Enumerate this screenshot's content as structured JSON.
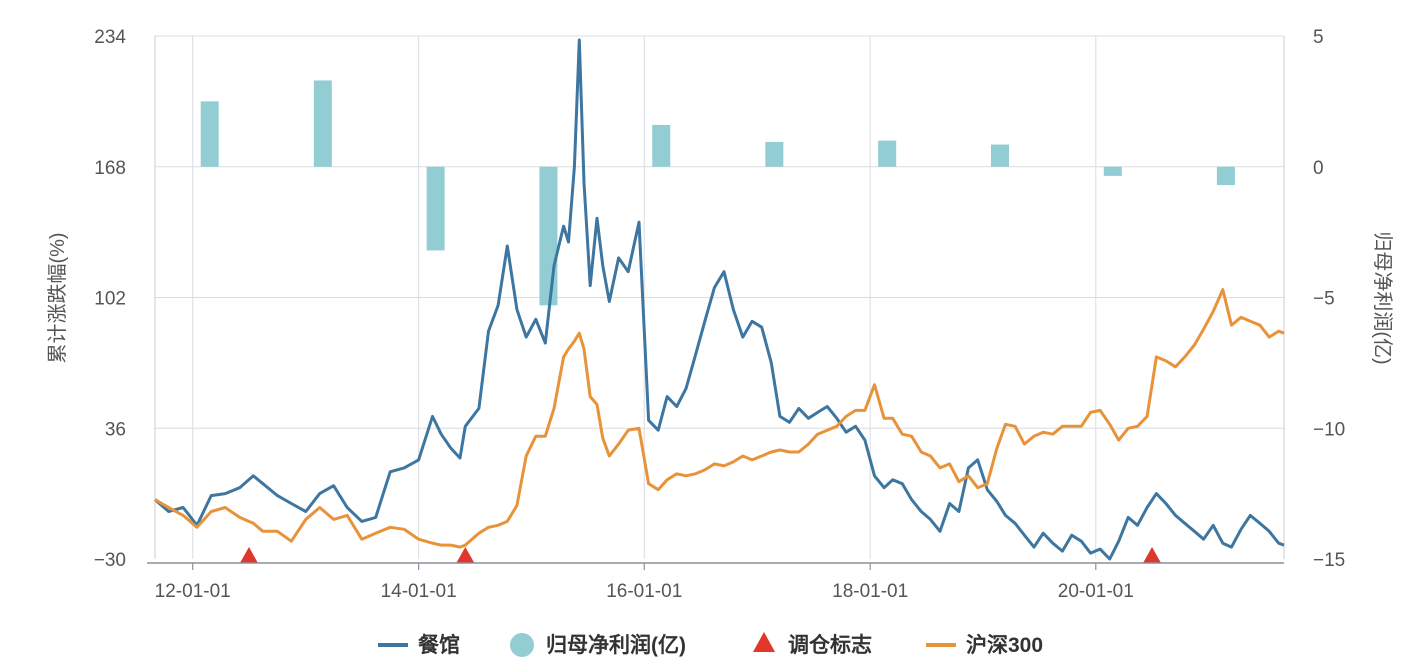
{
  "chart_data": {
    "type": "line",
    "left_axis": {
      "title": "累计涨跌幅(%)",
      "ticks": [
        "234",
        "168",
        "102",
        "36",
        "−30"
      ],
      "tick_values": [
        234,
        168,
        102,
        36,
        -30
      ],
      "range": [
        -30,
        234
      ]
    },
    "right_axis": {
      "title": "归母净利润(亿)",
      "ticks": [
        "5",
        "0",
        "−5",
        "−10",
        "−15"
      ],
      "tick_values": [
        5,
        0,
        -5,
        -10,
        -15
      ],
      "range": [
        -15,
        5
      ]
    },
    "x_axis": {
      "range": [
        "2011-09-01",
        "2021-09-01"
      ],
      "ticks": [
        {
          "label": "12-01-01",
          "date": "2012-01-01"
        },
        {
          "label": "14-01-01",
          "date": "2014-01-01"
        },
        {
          "label": "16-01-01",
          "date": "2016-01-01"
        },
        {
          "label": "18-01-01",
          "date": "2018-01-01"
        },
        {
          "label": "20-01-01",
          "date": "2020-01-01"
        }
      ]
    },
    "grid": true,
    "legend_position": "bottom",
    "legend": [
      {
        "label": "餐馆",
        "marker": "line",
        "color": "#3d76a0"
      },
      {
        "label": "归母净利润(亿)",
        "marker": "circle",
        "color": "#92cdd4"
      },
      {
        "label": "调仓标志",
        "marker": "triangle",
        "color": "#e0362c"
      },
      {
        "label": "沪深300",
        "marker": "line",
        "color": "#e8923a"
      }
    ],
    "series": [
      {
        "name": "餐馆",
        "color": "#3d76a0",
        "axis": "left",
        "points": [
          [
            "2011-09-01",
            0
          ],
          [
            "2011-10-15",
            -6
          ],
          [
            "2011-12-01",
            -4
          ],
          [
            "2012-01-15",
            -13
          ],
          [
            "2012-03-01",
            2
          ],
          [
            "2012-04-15",
            3
          ],
          [
            "2012-06-01",
            6
          ],
          [
            "2012-07-15",
            12
          ],
          [
            "2012-08-15",
            8
          ],
          [
            "2012-10-01",
            2
          ],
          [
            "2012-11-15",
            -2
          ],
          [
            "2013-01-01",
            -6
          ],
          [
            "2013-02-15",
            3
          ],
          [
            "2013-04-01",
            7
          ],
          [
            "2013-05-15",
            -4
          ],
          [
            "2013-07-01",
            -11
          ],
          [
            "2013-08-15",
            -9
          ],
          [
            "2013-10-01",
            14
          ],
          [
            "2013-11-15",
            16
          ],
          [
            "2014-01-01",
            20
          ],
          [
            "2014-02-15",
            42
          ],
          [
            "2014-03-15",
            33
          ],
          [
            "2014-04-15",
            26
          ],
          [
            "2014-05-15",
            21
          ],
          [
            "2014-06-01",
            37
          ],
          [
            "2014-07-15",
            46
          ],
          [
            "2014-08-15",
            85
          ],
          [
            "2014-09-15",
            98
          ],
          [
            "2014-10-15",
            128
          ],
          [
            "2014-11-15",
            96
          ],
          [
            "2014-12-15",
            82
          ],
          [
            "2015-01-15",
            91
          ],
          [
            "2015-02-15",
            79
          ],
          [
            "2015-03-15",
            118
          ],
          [
            "2015-04-15",
            138
          ],
          [
            "2015-05-01",
            130
          ],
          [
            "2015-05-20",
            168
          ],
          [
            "2015-06-05",
            232
          ],
          [
            "2015-06-20",
            160
          ],
          [
            "2015-07-10",
            108
          ],
          [
            "2015-08-01",
            142
          ],
          [
            "2015-08-20",
            118
          ],
          [
            "2015-09-10",
            100
          ],
          [
            "2015-10-10",
            122
          ],
          [
            "2015-11-10",
            115
          ],
          [
            "2015-12-15",
            140
          ],
          [
            "2016-01-15",
            40
          ],
          [
            "2016-02-15",
            35
          ],
          [
            "2016-03-15",
            52
          ],
          [
            "2016-04-15",
            47
          ],
          [
            "2016-05-15",
            56
          ],
          [
            "2016-06-15",
            73
          ],
          [
            "2016-07-15",
            90
          ],
          [
            "2016-08-15",
            107
          ],
          [
            "2016-09-15",
            115
          ],
          [
            "2016-10-15",
            96
          ],
          [
            "2016-11-15",
            82
          ],
          [
            "2016-12-15",
            90
          ],
          [
            "2017-01-15",
            87
          ],
          [
            "2017-02-15",
            69
          ],
          [
            "2017-03-15",
            42
          ],
          [
            "2017-04-15",
            39
          ],
          [
            "2017-05-15",
            46
          ],
          [
            "2017-06-15",
            41
          ],
          [
            "2017-07-15",
            44
          ],
          [
            "2017-08-15",
            47
          ],
          [
            "2017-09-15",
            41
          ],
          [
            "2017-10-15",
            34
          ],
          [
            "2017-11-15",
            37
          ],
          [
            "2017-12-15",
            30
          ],
          [
            "2018-01-15",
            12
          ],
          [
            "2018-02-15",
            6
          ],
          [
            "2018-03-15",
            10
          ],
          [
            "2018-04-15",
            8
          ],
          [
            "2018-05-15",
            0
          ],
          [
            "2018-06-15",
            -6
          ],
          [
            "2018-07-15",
            -10
          ],
          [
            "2018-08-15",
            -16
          ],
          [
            "2018-09-15",
            -2
          ],
          [
            "2018-10-15",
            -6
          ],
          [
            "2018-11-15",
            16
          ],
          [
            "2018-12-15",
            20
          ],
          [
            "2019-01-15",
            5
          ],
          [
            "2019-02-15",
            -1
          ],
          [
            "2019-03-15",
            -8
          ],
          [
            "2019-04-15",
            -12
          ],
          [
            "2019-05-15",
            -18
          ],
          [
            "2019-06-15",
            -24
          ],
          [
            "2019-07-15",
            -17
          ],
          [
            "2019-08-15",
            -22
          ],
          [
            "2019-09-15",
            -26
          ],
          [
            "2019-10-15",
            -18
          ],
          [
            "2019-11-15",
            -21
          ],
          [
            "2019-12-15",
            -27
          ],
          [
            "2020-01-15",
            -25
          ],
          [
            "2020-02-15",
            -30
          ],
          [
            "2020-03-15",
            -21
          ],
          [
            "2020-04-15",
            -9
          ],
          [
            "2020-05-15",
            -13
          ],
          [
            "2020-06-15",
            -4
          ],
          [
            "2020-07-15",
            3
          ],
          [
            "2020-08-15",
            -2
          ],
          [
            "2020-09-15",
            -8
          ],
          [
            "2020-10-15",
            -12
          ],
          [
            "2020-11-15",
            -16
          ],
          [
            "2020-12-15",
            -20
          ],
          [
            "2021-01-15",
            -13
          ],
          [
            "2021-02-15",
            -22
          ],
          [
            "2021-03-15",
            -24
          ],
          [
            "2021-04-15",
            -15
          ],
          [
            "2021-05-15",
            -8
          ],
          [
            "2021-06-15",
            -12
          ],
          [
            "2021-07-15",
            -16
          ],
          [
            "2021-08-15",
            -22
          ],
          [
            "2021-09-01",
            -23
          ]
        ]
      },
      {
        "name": "沪深300",
        "color": "#e8923a",
        "axis": "left",
        "points": [
          [
            "2011-09-01",
            0
          ],
          [
            "2011-10-15",
            -4
          ],
          [
            "2011-12-01",
            -8
          ],
          [
            "2012-01-15",
            -14
          ],
          [
            "2012-03-01",
            -6
          ],
          [
            "2012-04-15",
            -4
          ],
          [
            "2012-06-01",
            -9
          ],
          [
            "2012-07-15",
            -12
          ],
          [
            "2012-08-15",
            -16
          ],
          [
            "2012-10-01",
            -16
          ],
          [
            "2012-11-15",
            -21
          ],
          [
            "2013-01-01",
            -10
          ],
          [
            "2013-02-15",
            -4
          ],
          [
            "2013-04-01",
            -10
          ],
          [
            "2013-05-15",
            -8
          ],
          [
            "2013-07-01",
            -20
          ],
          [
            "2013-08-15",
            -17
          ],
          [
            "2013-10-01",
            -14
          ],
          [
            "2013-11-15",
            -15
          ],
          [
            "2014-01-01",
            -20
          ],
          [
            "2014-02-15",
            -22
          ],
          [
            "2014-03-15",
            -23
          ],
          [
            "2014-04-15",
            -23
          ],
          [
            "2014-05-15",
            -24
          ],
          [
            "2014-06-01",
            -23
          ],
          [
            "2014-07-15",
            -17
          ],
          [
            "2014-08-15",
            -14
          ],
          [
            "2014-09-15",
            -13
          ],
          [
            "2014-10-15",
            -11
          ],
          [
            "2014-11-15",
            -3
          ],
          [
            "2014-12-15",
            22
          ],
          [
            "2015-01-15",
            32
          ],
          [
            "2015-02-15",
            32
          ],
          [
            "2015-03-15",
            46
          ],
          [
            "2015-04-15",
            72
          ],
          [
            "2015-05-01",
            76
          ],
          [
            "2015-05-20",
            80
          ],
          [
            "2015-06-05",
            84
          ],
          [
            "2015-06-20",
            76
          ],
          [
            "2015-07-10",
            52
          ],
          [
            "2015-08-01",
            48
          ],
          [
            "2015-08-20",
            31
          ],
          [
            "2015-09-10",
            22
          ],
          [
            "2015-10-10",
            28
          ],
          [
            "2015-11-10",
            35
          ],
          [
            "2015-12-15",
            36
          ],
          [
            "2016-01-15",
            8
          ],
          [
            "2016-02-15",
            5
          ],
          [
            "2016-03-15",
            10
          ],
          [
            "2016-04-15",
            13
          ],
          [
            "2016-05-15",
            12
          ],
          [
            "2016-06-15",
            13
          ],
          [
            "2016-07-15",
            15
          ],
          [
            "2016-08-15",
            18
          ],
          [
            "2016-09-15",
            17
          ],
          [
            "2016-10-15",
            19
          ],
          [
            "2016-11-15",
            22
          ],
          [
            "2016-12-15",
            20
          ],
          [
            "2017-01-15",
            22
          ],
          [
            "2017-02-15",
            24
          ],
          [
            "2017-03-15",
            25
          ],
          [
            "2017-04-15",
            24
          ],
          [
            "2017-05-15",
            24
          ],
          [
            "2017-06-15",
            28
          ],
          [
            "2017-07-15",
            33
          ],
          [
            "2017-08-15",
            35
          ],
          [
            "2017-09-15",
            37
          ],
          [
            "2017-10-15",
            42
          ],
          [
            "2017-11-15",
            45
          ],
          [
            "2017-12-15",
            45
          ],
          [
            "2018-01-15",
            58
          ],
          [
            "2018-02-15",
            41
          ],
          [
            "2018-03-15",
            41
          ],
          [
            "2018-04-15",
            33
          ],
          [
            "2018-05-15",
            32
          ],
          [
            "2018-06-15",
            24
          ],
          [
            "2018-07-15",
            22
          ],
          [
            "2018-08-15",
            16
          ],
          [
            "2018-09-15",
            18
          ],
          [
            "2018-10-15",
            9
          ],
          [
            "2018-11-15",
            12
          ],
          [
            "2018-12-15",
            6
          ],
          [
            "2019-01-15",
            8
          ],
          [
            "2019-02-15",
            26
          ],
          [
            "2019-03-15",
            38
          ],
          [
            "2019-04-15",
            37
          ],
          [
            "2019-05-15",
            28
          ],
          [
            "2019-06-15",
            32
          ],
          [
            "2019-07-15",
            34
          ],
          [
            "2019-08-15",
            33
          ],
          [
            "2019-09-15",
            37
          ],
          [
            "2019-10-15",
            37
          ],
          [
            "2019-11-15",
            37
          ],
          [
            "2019-12-15",
            44
          ],
          [
            "2020-01-15",
            45
          ],
          [
            "2020-02-15",
            38
          ],
          [
            "2020-03-15",
            30
          ],
          [
            "2020-04-15",
            36
          ],
          [
            "2020-05-15",
            37
          ],
          [
            "2020-06-15",
            42
          ],
          [
            "2020-07-15",
            72
          ],
          [
            "2020-08-15",
            70
          ],
          [
            "2020-09-15",
            67
          ],
          [
            "2020-10-15",
            72
          ],
          [
            "2020-11-15",
            78
          ],
          [
            "2020-12-15",
            86
          ],
          [
            "2021-01-15",
            95
          ],
          [
            "2021-02-15",
            106
          ],
          [
            "2021-03-15",
            88
          ],
          [
            "2021-04-15",
            92
          ],
          [
            "2021-05-15",
            90
          ],
          [
            "2021-06-15",
            88
          ],
          [
            "2021-07-15",
            82
          ],
          [
            "2021-08-15",
            85
          ],
          [
            "2021-09-01",
            84
          ]
        ]
      },
      {
        "name": "归母净利润(亿)",
        "color": "#92cdd4",
        "axis": "right",
        "type": "bar",
        "points": [
          [
            "2012-01-01",
            2.5
          ],
          [
            "2013-01-01",
            3.3
          ],
          [
            "2014-01-01",
            -3.2
          ],
          [
            "2015-01-01",
            -5.3
          ],
          [
            "2016-01-01",
            1.6
          ],
          [
            "2017-01-01",
            0.95
          ],
          [
            "2018-01-01",
            1.0
          ],
          [
            "2019-01-01",
            0.85
          ],
          [
            "2020-01-01",
            -0.35
          ],
          [
            "2021-01-01",
            -0.7
          ]
        ]
      },
      {
        "name": "调仓标志",
        "color": "#e0362c",
        "type": "marker",
        "dates": [
          "2012-07-01",
          "2014-06-01",
          "2020-07-01"
        ]
      }
    ]
  }
}
